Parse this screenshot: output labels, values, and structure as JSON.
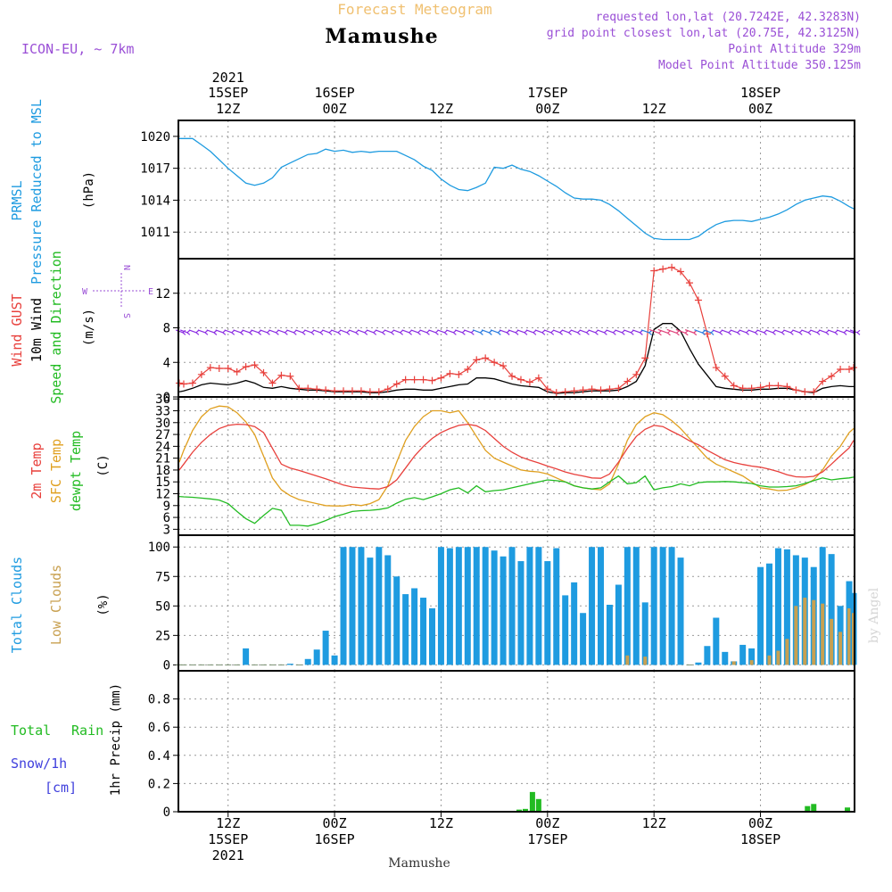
{
  "header": {
    "product": "Forecast Meteogram",
    "location": "Mamushe",
    "model": "ICON-EU, ~ 7km",
    "requested": "requested lon,lat (20.7242E, 42.3283N)",
    "grid_point": "grid point closest lon,lat (20.75E, 42.3125N)",
    "point_altitude": "Point Altitude 329m",
    "model_altitude": "Model Point Altitude 350.125m",
    "footer_location": "Mamushe",
    "credit": "by Angel"
  },
  "time_axis": {
    "top_labels": [
      {
        "l1": "2021",
        "l2": "15SEP",
        "l3": "12Z",
        "h": 12
      },
      {
        "l1": "",
        "l2": "16SEP",
        "l3": "00Z",
        "h": 24
      },
      {
        "l1": "",
        "l2": "",
        "l3": "12Z",
        "h": 36
      },
      {
        "l1": "",
        "l2": "17SEP",
        "l3": "00Z",
        "h": 48
      },
      {
        "l1": "",
        "l2": "",
        "l3": "12Z",
        "h": 60
      },
      {
        "l1": "",
        "l2": "18SEP",
        "l3": "00Z",
        "h": 72
      }
    ],
    "bottom_labels": [
      {
        "l1": "12Z",
        "l2": "15SEP",
        "l3": "2021",
        "h": 12
      },
      {
        "l1": "00Z",
        "l2": "16SEP",
        "l3": "",
        "h": 24
      },
      {
        "l1": "12Z",
        "l2": "",
        "l3": "",
        "h": 36
      },
      {
        "l1": "00Z",
        "l2": "17SEP",
        "l3": "",
        "h": 48
      },
      {
        "l1": "12Z",
        "l2": "",
        "l3": "",
        "h": 60
      },
      {
        "l1": "00Z",
        "l2": "18SEP",
        "l3": "",
        "h": 72
      }
    ],
    "range_hours": [
      6.4,
      82.6
    ]
  },
  "panels": {
    "pressure": {
      "label_a": "PRMSL",
      "label_b": "Pressure Reduced to MSL",
      "unit": "(hPa)"
    },
    "wind": {
      "label_a": "Wind GUST",
      "label_b": "10m Wind",
      "label_c": "Speed and Direction",
      "unit": "(m/s)",
      "compass": {
        "n": "N",
        "s": "S",
        "w": "W",
        "e": "E"
      }
    },
    "temp": {
      "label_a": "2m Temp",
      "label_b": "SFC Temp",
      "label_c": "dewpt Temp",
      "unit": "(C)"
    },
    "clouds": {
      "label_a": "Total Clouds",
      "label_b": "Low Clouds",
      "unit": "(%)"
    },
    "precip": {
      "label_a": "Total",
      "label_b": "Rain",
      "label_c": "Snow/1h",
      "label_d": "[cm]",
      "unit": "1hr Precip (mm)"
    }
  },
  "colors": {
    "pressure": "#1e9be0",
    "gust": "#e8403c",
    "wind": "#000000",
    "wind_arrow": "#8a2be2",
    "t2m": "#e8403c",
    "tsfc": "#e0a020",
    "dewpt": "#22bb22",
    "total_clouds": "#1e9be0",
    "low_clouds": "#c8a050",
    "rain": "#22bb22",
    "snow": "#4040dd",
    "header_purple": "#9a4fd6",
    "header_orange": "#f0c070"
  },
  "chart_data": [
    {
      "type": "line",
      "name": "pressure",
      "ylabel": "(hPa)",
      "yticks": [
        1011,
        1014,
        1017,
        1020
      ],
      "ylim": [
        1008.5,
        1021.5
      ],
      "x": [
        6.5,
        7,
        8,
        9,
        10,
        11,
        12,
        13,
        14,
        15,
        16,
        17,
        18,
        19,
        20,
        21,
        22,
        23,
        24,
        25,
        26,
        27,
        28,
        29,
        30,
        31,
        32,
        33,
        34,
        35,
        36,
        37,
        38,
        39,
        40,
        41,
        42,
        43,
        44,
        45,
        46,
        47,
        48,
        49,
        50,
        51,
        52,
        53,
        54,
        55,
        56,
        57,
        58,
        59,
        60,
        61,
        62,
        63,
        64,
        65,
        66,
        67,
        68,
        69,
        70,
        71,
        72,
        73,
        74,
        75,
        76,
        77,
        78,
        79,
        80,
        81,
        82,
        82.5
      ],
      "values": [
        1019.8,
        1019.8,
        1019.8,
        1019.2,
        1018.6,
        1017.8,
        1017.0,
        1016.3,
        1015.6,
        1015.4,
        1015.6,
        1016.1,
        1017.1,
        1017.5,
        1017.9,
        1018.3,
        1018.4,
        1018.8,
        1018.6,
        1018.7,
        1018.5,
        1018.6,
        1018.5,
        1018.6,
        1018.6,
        1018.6,
        1018.2,
        1017.8,
        1017.2,
        1016.8,
        1016.0,
        1015.4,
        1015.0,
        1014.9,
        1015.2,
        1015.6,
        1017.1,
        1017.0,
        1017.3,
        1016.9,
        1016.7,
        1016.3,
        1015.8,
        1015.3,
        1014.7,
        1014.2,
        1014.1,
        1014.1,
        1014.0,
        1013.6,
        1013.0,
        1012.3,
        1011.6,
        1010.9,
        1010.4,
        1010.3,
        1010.3,
        1010.3,
        1010.3,
        1010.6,
        1011.2,
        1011.7,
        1012.0,
        1012.1,
        1012.1,
        1012.0,
        1012.2,
        1012.4,
        1012.7,
        1013.1,
        1013.6,
        1014.0,
        1014.2,
        1014.4,
        1014.3,
        1013.9,
        1013.4,
        1013.2
      ]
    },
    {
      "type": "line",
      "name": "wind",
      "ylabel": "(m/s)",
      "yticks": [
        0,
        4,
        8,
        12
      ],
      "ylim": [
        0,
        16
      ],
      "x": [
        6.5,
        7,
        8,
        9,
        10,
        11,
        12,
        13,
        14,
        15,
        16,
        17,
        18,
        19,
        20,
        21,
        22,
        23,
        24,
        25,
        26,
        27,
        28,
        29,
        30,
        31,
        32,
        33,
        34,
        35,
        36,
        37,
        38,
        39,
        40,
        41,
        42,
        43,
        44,
        45,
        46,
        47,
        48,
        49,
        50,
        51,
        52,
        53,
        54,
        55,
        56,
        57,
        58,
        59,
        60,
        61,
        62,
        63,
        64,
        65,
        66,
        67,
        68,
        69,
        70,
        71,
        72,
        73,
        74,
        75,
        76,
        77,
        78,
        79,
        80,
        81,
        82,
        82.5
      ],
      "gust": [
        1.6,
        1.5,
        1.6,
        2.6,
        3.4,
        3.3,
        3.3,
        2.9,
        3.5,
        3.7,
        2.8,
        1.6,
        2.5,
        2.4,
        1.0,
        1.0,
        0.9,
        0.8,
        0.7,
        0.7,
        0.7,
        0.7,
        0.6,
        0.6,
        0.9,
        1.5,
        2.0,
        2.0,
        2.0,
        1.9,
        2.2,
        2.7,
        2.6,
        3.2,
        4.3,
        4.5,
        4.0,
        3.6,
        2.4,
        2.0,
        1.7,
        2.2,
        0.9,
        0.5,
        0.6,
        0.7,
        0.8,
        0.9,
        0.8,
        0.9,
        1.0,
        1.8,
        2.6,
        4.5,
        14.6,
        14.8,
        15.0,
        14.5,
        13.2,
        11.2,
        7.3,
        3.4,
        2.4,
        1.3,
        1.0,
        1.0,
        1.1,
        1.3,
        1.3,
        1.2,
        0.8,
        0.6,
        0.6,
        1.8,
        2.4,
        3.2,
        3.2,
        3.4
      ],
      "wind": [
        0.6,
        0.7,
        1.0,
        1.4,
        1.6,
        1.5,
        1.4,
        1.6,
        1.9,
        1.6,
        1.1,
        1.0,
        1.2,
        1.0,
        0.9,
        0.8,
        0.8,
        0.7,
        0.6,
        0.6,
        0.6,
        0.6,
        0.5,
        0.5,
        0.6,
        0.8,
        0.9,
        0.9,
        0.8,
        0.8,
        1.0,
        1.2,
        1.4,
        1.5,
        2.2,
        2.2,
        2.1,
        1.8,
        1.5,
        1.3,
        1.2,
        1.1,
        0.6,
        0.4,
        0.5,
        0.5,
        0.6,
        0.7,
        0.7,
        0.7,
        0.8,
        1.2,
        1.8,
        3.6,
        7.8,
        8.5,
        8.5,
        7.6,
        5.6,
        3.8,
        2.5,
        1.2,
        1.0,
        0.9,
        0.8,
        0.8,
        0.9,
        0.9,
        1.0,
        1.0,
        0.8,
        0.6,
        0.5,
        1.0,
        1.2,
        1.3,
        1.2,
        1.2
      ],
      "arrow_level": 7.6,
      "arrow_angle_deg": 200
    },
    {
      "type": "line",
      "name": "temperature",
      "ylabel": "(C)",
      "yticks": [
        3,
        6,
        9,
        12,
        15,
        18,
        21,
        24,
        27,
        30,
        33,
        36
      ],
      "ylim": [
        1.5,
        36.5
      ],
      "x": [
        6.5,
        7,
        8,
        9,
        10,
        11,
        12,
        13,
        14,
        15,
        16,
        17,
        18,
        19,
        20,
        21,
        22,
        23,
        24,
        25,
        26,
        27,
        28,
        29,
        30,
        31,
        32,
        33,
        34,
        35,
        36,
        37,
        38,
        39,
        40,
        41,
        42,
        43,
        44,
        45,
        46,
        47,
        48,
        49,
        50,
        51,
        52,
        53,
        54,
        55,
        56,
        57,
        58,
        59,
        60,
        61,
        62,
        63,
        64,
        65,
        66,
        67,
        68,
        69,
        70,
        71,
        72,
        73,
        74,
        75,
        76,
        77,
        78,
        79,
        80,
        81,
        82,
        82.5
      ],
      "t2m": [
        18.0,
        19.5,
        22.5,
        25.0,
        27.0,
        28.5,
        29.3,
        29.6,
        29.5,
        29.0,
        27.5,
        23.5,
        19.5,
        18.5,
        17.9,
        17.2,
        16.5,
        15.8,
        15.0,
        14.2,
        13.7,
        13.5,
        13.3,
        13.2,
        13.8,
        15.5,
        18.5,
        21.5,
        24.0,
        26.0,
        27.5,
        28.5,
        29.3,
        29.6,
        29.2,
        28.0,
        26.0,
        24.0,
        22.5,
        21.3,
        20.5,
        19.8,
        19.0,
        18.3,
        17.5,
        16.9,
        16.5,
        16.0,
        15.9,
        17.0,
        20.0,
        23.5,
        26.5,
        28.3,
        29.3,
        29.0,
        27.8,
        26.7,
        25.4,
        24.4,
        23.0,
        21.8,
        20.6,
        19.9,
        19.4,
        19.0,
        18.7,
        18.2,
        17.6,
        16.8,
        16.3,
        16.2,
        16.4,
        17.5,
        19.5,
        21.6,
        23.6,
        25.5
      ],
      "tsfc": [
        20.0,
        23.0,
        28.0,
        31.5,
        33.5,
        34.2,
        34.0,
        32.5,
        30.2,
        27.0,
        21.5,
        16.0,
        13.0,
        11.5,
        10.5,
        10.0,
        9.5,
        9.0,
        8.9,
        8.9,
        9.3,
        9.0,
        9.5,
        10.5,
        14.0,
        20.0,
        25.5,
        29.0,
        31.5,
        33.0,
        33.0,
        32.5,
        33.0,
        30.0,
        26.5,
        23.0,
        21.0,
        20.0,
        19.0,
        18.0,
        17.7,
        17.5,
        17.0,
        16.0,
        15.0,
        14.0,
        13.5,
        13.2,
        13.0,
        14.5,
        19.5,
        25.5,
        29.5,
        31.5,
        32.5,
        32.0,
        30.5,
        28.5,
        26.0,
        23.5,
        21.0,
        19.5,
        18.5,
        17.5,
        16.5,
        15.0,
        13.5,
        13.2,
        12.8,
        12.9,
        13.5,
        14.3,
        15.5,
        18.0,
        21.5,
        24.0,
        27.5,
        28.5
      ],
      "dewpt": [
        11.3,
        11.2,
        11.1,
        10.9,
        10.7,
        10.4,
        9.5,
        7.5,
        5.7,
        4.5,
        6.5,
        8.3,
        7.8,
        4.0,
        4.0,
        3.8,
        4.4,
        5.2,
        6.2,
        6.8,
        7.5,
        7.7,
        7.8,
        8.0,
        8.4,
        9.6,
        10.6,
        11.0,
        10.5,
        11.2,
        12.0,
        13.0,
        13.5,
        12.2,
        14.0,
        12.5,
        12.8,
        13.0,
        13.5,
        14.0,
        14.5,
        15.0,
        15.5,
        15.3,
        15.0,
        14.0,
        13.5,
        13.2,
        13.5,
        15.0,
        16.5,
        14.5,
        14.8,
        16.5,
        13.0,
        13.5,
        13.8,
        14.5,
        14.0,
        14.8,
        15.0,
        15.0,
        15.1,
        15.0,
        14.8,
        14.6,
        14.0,
        13.7,
        13.7,
        13.8,
        14.0,
        14.6,
        15.3,
        16.0,
        15.5,
        15.8,
        16.0,
        16.2
      ]
    },
    {
      "type": "bar",
      "name": "clouds",
      "ylabel": "(%)",
      "yticks": [
        0,
        25,
        50,
        75,
        100
      ],
      "ylim": [
        -5,
        110
      ],
      "x": [
        6.5,
        7,
        8,
        9,
        10,
        11,
        12,
        13,
        14,
        15,
        16,
        17,
        18,
        19,
        20,
        21,
        22,
        23,
        24,
        25,
        26,
        27,
        28,
        29,
        30,
        31,
        32,
        33,
        34,
        35,
        36,
        37,
        38,
        39,
        40,
        41,
        42,
        43,
        44,
        45,
        46,
        47,
        48,
        49,
        50,
        51,
        52,
        53,
        54,
        55,
        56,
        57,
        58,
        59,
        60,
        61,
        62,
        63,
        64,
        65,
        66,
        67,
        68,
        69,
        70,
        71,
        72,
        73,
        74,
        75,
        76,
        77,
        78,
        79,
        80,
        81,
        82,
        82.5
      ],
      "total": [
        0,
        0,
        0,
        0,
        0,
        0,
        0,
        0,
        14,
        0,
        0,
        0,
        0,
        1,
        0,
        5,
        13,
        29,
        8,
        100,
        100,
        100,
        91,
        100,
        93,
        75,
        60,
        65,
        57,
        48,
        100,
        99,
        100,
        100,
        100,
        100,
        97,
        92,
        100,
        88,
        100,
        100,
        88,
        99,
        59,
        70,
        44,
        100,
        100,
        51,
        68,
        100,
        100,
        53,
        100,
        100,
        100,
        91,
        0,
        2,
        16,
        40,
        11,
        3,
        17,
        14,
        83,
        86,
        99,
        98,
        93,
        91,
        83,
        100,
        94,
        50,
        71,
        61
      ],
      "low": [
        0,
        0,
        0,
        0,
        0,
        0,
        0,
        0,
        0,
        0,
        0,
        0,
        0,
        0,
        0,
        0,
        0,
        0,
        0,
        0,
        0,
        0,
        0,
        0,
        0,
        0,
        0,
        0,
        0,
        0,
        0,
        0,
        0,
        0,
        0,
        0,
        0,
        0,
        0,
        0,
        0,
        0,
        0,
        0,
        0,
        0,
        0,
        0,
        0,
        0,
        0,
        8,
        0,
        7,
        0,
        0,
        0,
        0,
        0,
        0,
        0,
        0,
        0,
        3,
        0,
        4,
        0,
        8,
        12,
        22,
        50,
        57,
        55,
        52,
        39,
        28,
        48,
        44
      ]
    },
    {
      "type": "bar",
      "name": "precip",
      "ylabel": "1hr Precip (mm)",
      "yticks": [
        0,
        0.2,
        0.4,
        0.6,
        0.8
      ],
      "ylim": [
        0,
        1.0
      ],
      "x": [
        44.8,
        45.5,
        46.3,
        47.0,
        77.3,
        78.0,
        81.8
      ],
      "rain": [
        0.015,
        0.02,
        0.14,
        0.09,
        0.04,
        0.055,
        0.03
      ],
      "snow": [
        0,
        0,
        0,
        0,
        0,
        0,
        0
      ]
    }
  ]
}
